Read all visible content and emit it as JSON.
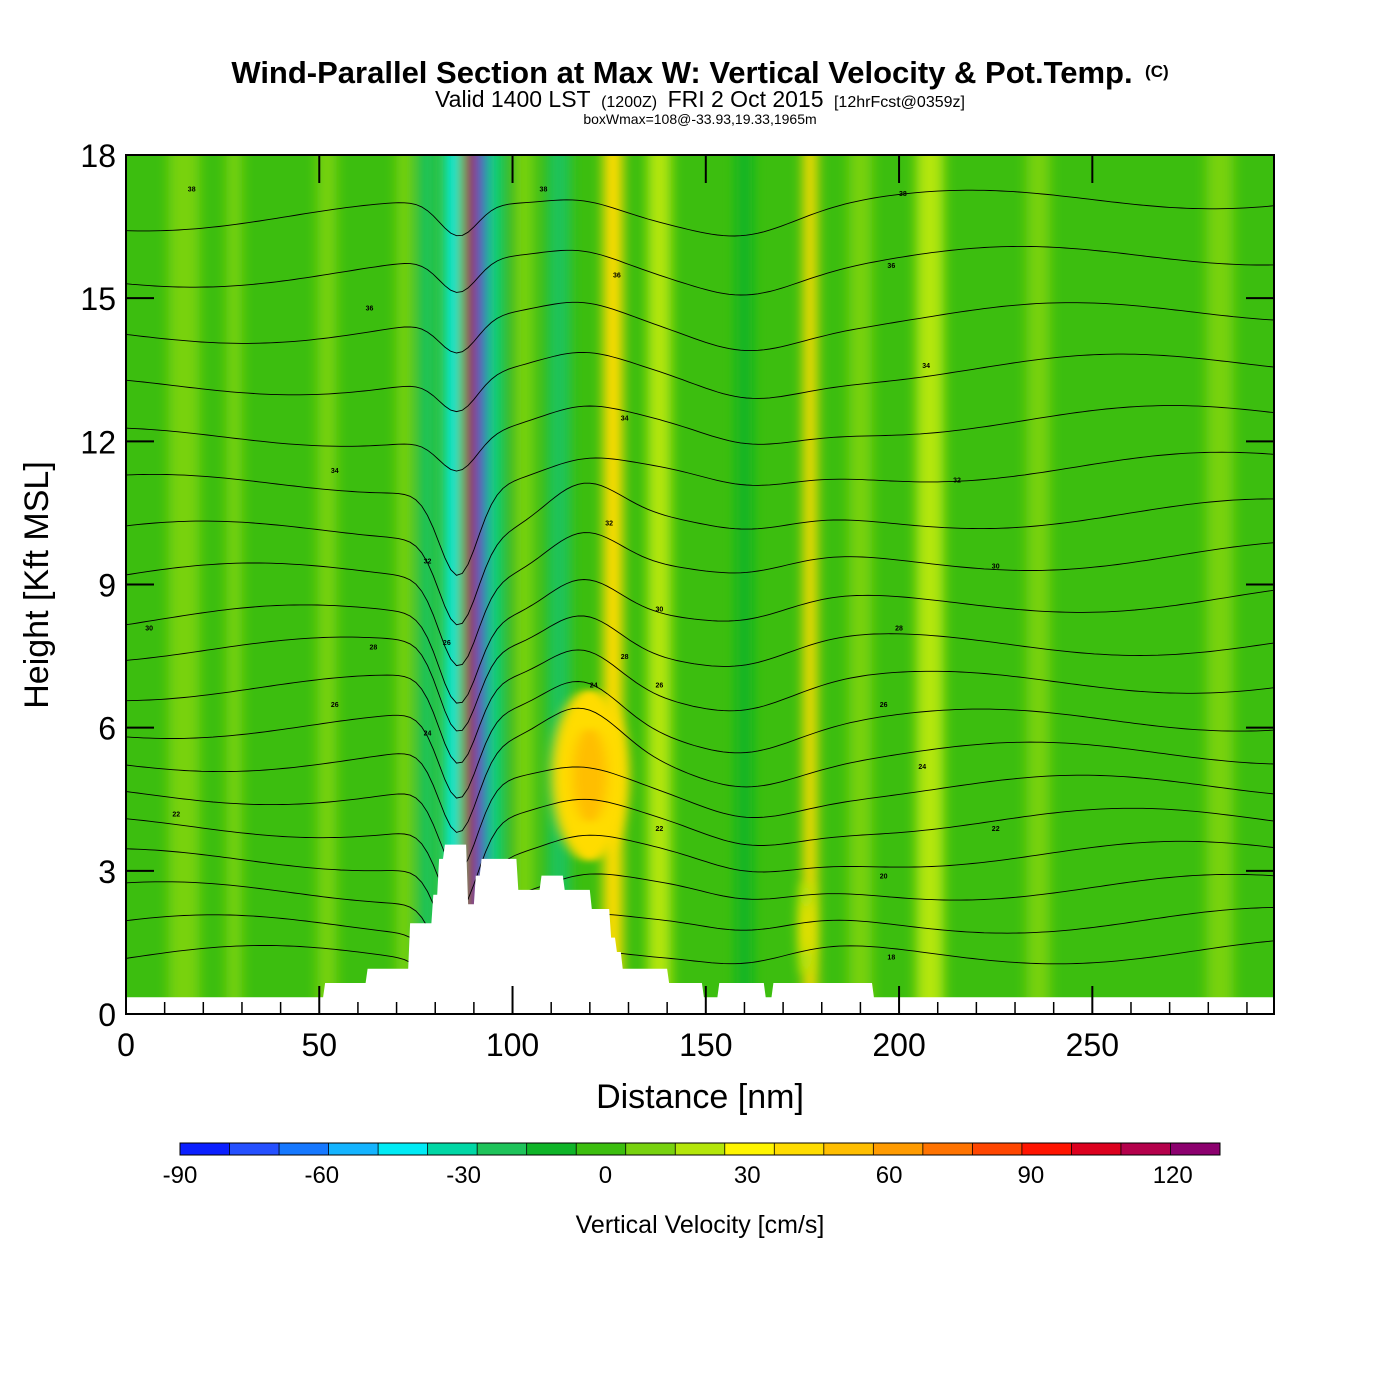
{
  "chart_data": {
    "type": "heatmap",
    "title": "Wind-Parallel Section at Max W: Vertical Velocity & Pot.Temp.",
    "title_mark": "(C)",
    "subtitle": {
      "valid": "Valid 1400 LST",
      "zulu": "(1200Z)",
      "date": "FRI 2 Oct 2015",
      "forecast": "[12hrFcst@0359z]",
      "box_wmax": "boxWmax=108@-33.93,19.33,1965m"
    },
    "xlabel": "Distance [nm]",
    "ylabel": "Height [Kft MSL]",
    "xlim": [
      0,
      297
    ],
    "ylim": [
      0,
      18
    ],
    "xticks": [
      0,
      50,
      100,
      150,
      200,
      250
    ],
    "yticks": [
      0,
      3,
      6,
      9,
      12,
      15,
      18
    ],
    "colorbar": {
      "label": "Vertical Velocity [cm/s]",
      "min": -90,
      "max": 130,
      "step": 10,
      "tick_values": [
        -90,
        -60,
        -30,
        0,
        30,
        60,
        90,
        120
      ],
      "colors": [
        "#0b1fff",
        "#2550ff",
        "#1678ff",
        "#14b4ff",
        "#00ebf5",
        "#00d7a5",
        "#1ec35a",
        "#0fb428",
        "#3cbe0f",
        "#78d20f",
        "#b4e60a",
        "#fff500",
        "#ffdc00",
        "#ffbe00",
        "#ff9b00",
        "#ff7300",
        "#ff4600",
        "#ff1400",
        "#dc001e",
        "#b4004b",
        "#8c006e"
      ]
    },
    "vertical_velocity_bands": [
      {
        "x": 15,
        "w": 8,
        "value": 4
      },
      {
        "x": 28,
        "w": 4,
        "value": 6
      },
      {
        "x": 52,
        "w": 5,
        "value": 6
      },
      {
        "x": 72,
        "w": 4,
        "value": 4
      },
      {
        "x": 78,
        "w": 5,
        "value": -22
      },
      {
        "x": 84.5,
        "w": 3.5,
        "value": -45
      },
      {
        "x": 89,
        "w": 2.6,
        "value": 100
      },
      {
        "x": 92,
        "w": 2.4,
        "value": -80
      },
      {
        "x": 95.5,
        "w": 2.5,
        "value": -35
      },
      {
        "x": 100,
        "w": 3,
        "value": -15
      },
      {
        "x": 103,
        "w": 5,
        "value": 8
      },
      {
        "x": 112,
        "w": 6,
        "value": -28
      },
      {
        "x": 126,
        "w": 5,
        "value": 34
      },
      {
        "x": 138,
        "w": 6,
        "value": 12
      },
      {
        "x": 160,
        "w": 4,
        "value": -15
      },
      {
        "x": 177,
        "w": 3.5,
        "value": 35
      },
      {
        "x": 190,
        "w": 6,
        "value": 8
      },
      {
        "x": 208,
        "w": 7,
        "value": 12
      },
      {
        "x": 236,
        "w": 6,
        "value": 8
      },
      {
        "x": 283,
        "w": 7,
        "value": 6
      }
    ],
    "updraft_blobs": [
      {
        "x": 120,
        "y": 5,
        "rx": 10,
        "ry": 1.8,
        "value": 48
      },
      {
        "x": 176,
        "y": 1.8,
        "rx": 2,
        "ry": 1.0,
        "value": 30
      }
    ],
    "terrain_kft": [
      [
        0,
        0.35
      ],
      [
        51,
        0.35
      ],
      [
        51.5,
        0.65
      ],
      [
        62,
        0.65
      ],
      [
        62.5,
        0.95
      ],
      [
        73,
        0.95
      ],
      [
        73.5,
        1.9
      ],
      [
        79,
        1.9
      ],
      [
        79.5,
        2.5
      ],
      [
        80.5,
        2.5
      ],
      [
        81,
        3.25
      ],
      [
        82,
        3.25
      ],
      [
        82.5,
        3.55
      ],
      [
        88,
        3.55
      ],
      [
        88.5,
        2.3
      ],
      [
        90,
        2.3
      ],
      [
        90.5,
        2.9
      ],
      [
        91.5,
        2.9
      ],
      [
        92,
        3.25
      ],
      [
        101,
        3.25
      ],
      [
        101.5,
        2.6
      ],
      [
        107,
        2.6
      ],
      [
        107.5,
        2.9
      ],
      [
        113,
        2.9
      ],
      [
        113.5,
        2.6
      ],
      [
        120,
        2.6
      ],
      [
        120.5,
        2.2
      ],
      [
        125,
        2.2
      ],
      [
        125.5,
        1.6
      ],
      [
        126.5,
        1.6
      ],
      [
        127,
        1.3
      ],
      [
        128,
        1.3
      ],
      [
        128.5,
        0.95
      ],
      [
        140,
        0.95
      ],
      [
        140.5,
        0.65
      ],
      [
        149,
        0.65
      ],
      [
        149.5,
        0.35
      ],
      [
        153,
        0.35
      ],
      [
        153.5,
        0.65
      ],
      [
        165,
        0.65
      ],
      [
        165.5,
        0.35
      ],
      [
        167,
        0.35
      ],
      [
        167.5,
        0.65
      ],
      [
        193,
        0.65
      ],
      [
        193.5,
        0.35
      ],
      [
        297,
        0.35
      ]
    ],
    "theta_isolines": [
      {
        "base": 1.25
      },
      {
        "base": 1.9
      },
      {
        "base": 2.6
      },
      {
        "base": 3.3
      },
      {
        "base": 4.0
      },
      {
        "base": 4.7
      },
      {
        "base": 5.4
      },
      {
        "base": 6.1
      },
      {
        "base": 6.9
      },
      {
        "base": 7.7
      },
      {
        "base": 8.5
      },
      {
        "base": 9.4
      },
      {
        "base": 10.3
      },
      {
        "base": 11.3
      },
      {
        "base": 12.3
      },
      {
        "base": 13.4
      },
      {
        "base": 14.5
      },
      {
        "base": 15.7
      },
      {
        "base": 16.9
      }
    ],
    "contour_labels": [
      {
        "x": 17,
        "y": 17.3,
        "text": "38"
      },
      {
        "x": 108,
        "y": 17.3,
        "text": "38"
      },
      {
        "x": 201,
        "y": 17.2,
        "text": "38"
      },
      {
        "x": 63,
        "y": 14.8,
        "text": "36"
      },
      {
        "x": 127,
        "y": 15.5,
        "text": "36"
      },
      {
        "x": 198,
        "y": 15.7,
        "text": "36"
      },
      {
        "x": 207,
        "y": 13.6,
        "text": "34"
      },
      {
        "x": 129,
        "y": 12.5,
        "text": "34"
      },
      {
        "x": 54,
        "y": 11.4,
        "text": "34"
      },
      {
        "x": 215,
        "y": 11.2,
        "text": "32"
      },
      {
        "x": 125,
        "y": 10.3,
        "text": "32"
      },
      {
        "x": 78,
        "y": 9.5,
        "text": "32"
      },
      {
        "x": 225,
        "y": 9.4,
        "text": "30"
      },
      {
        "x": 138,
        "y": 8.5,
        "text": "30"
      },
      {
        "x": 6,
        "y": 8.1,
        "text": "30"
      },
      {
        "x": 200,
        "y": 8.1,
        "text": "28"
      },
      {
        "x": 64,
        "y": 7.7,
        "text": "28"
      },
      {
        "x": 129,
        "y": 7.5,
        "text": "28"
      },
      {
        "x": 138,
        "y": 6.9,
        "text": "26"
      },
      {
        "x": 121,
        "y": 6.9,
        "text": "24"
      },
      {
        "x": 54,
        "y": 6.5,
        "text": "26"
      },
      {
        "x": 196,
        "y": 6.5,
        "text": "26"
      },
      {
        "x": 78,
        "y": 5.9,
        "text": "24"
      },
      {
        "x": 206,
        "y": 5.2,
        "text": "24"
      },
      {
        "x": 13,
        "y": 4.2,
        "text": "22"
      },
      {
        "x": 225,
        "y": 3.9,
        "text": "22"
      },
      {
        "x": 138,
        "y": 3.9,
        "text": "22"
      },
      {
        "x": 196,
        "y": 2.9,
        "text": "20"
      },
      {
        "x": 198,
        "y": 1.2,
        "text": "18"
      },
      {
        "x": 83,
        "y": 7.8,
        "text": "26"
      }
    ]
  }
}
